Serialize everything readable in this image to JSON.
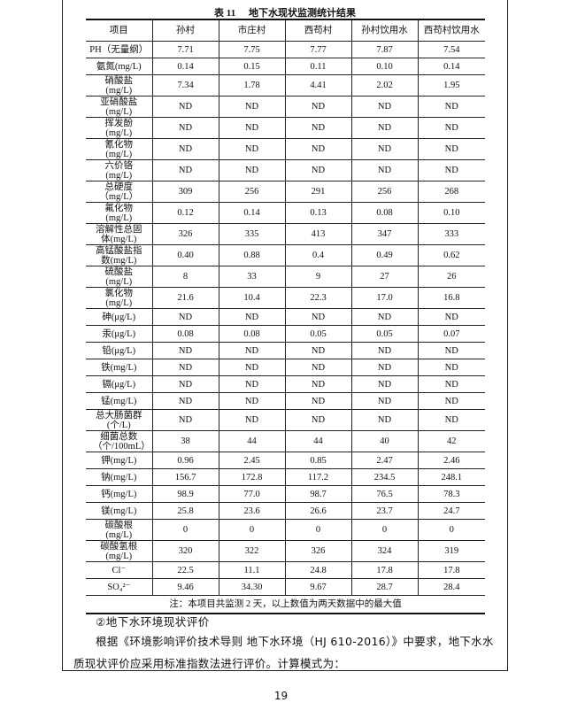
{
  "table": {
    "caption_no": "表 11",
    "caption_title": "地下水现状监测统计结果",
    "headers": [
      "项目",
      "孙村",
      "市庄村",
      "西苟村",
      "孙村饮用水",
      "西苟村饮用水"
    ],
    "rows": [
      {
        "item": "PH（无量纲）",
        "values": [
          "7.71",
          "7.75",
          "7.77",
          "7.87",
          "7.54"
        ],
        "tall": false
      },
      {
        "item": "氨氮(mg/L)",
        "values": [
          "0.14",
          "0.15",
          "0.11",
          "0.10",
          "0.14"
        ],
        "tall": false
      },
      {
        "item": "硝酸盐(mg/L)",
        "values": [
          "7.34",
          "1.78",
          "4.41",
          "2.02",
          "1.95"
        ],
        "tall": true
      },
      {
        "item": "亚硝酸盐(mg/L)",
        "values": [
          "ND",
          "ND",
          "ND",
          "ND",
          "ND"
        ],
        "tall": true
      },
      {
        "item": "挥发酚(mg/L)",
        "values": [
          "ND",
          "ND",
          "ND",
          "ND",
          "ND"
        ],
        "tall": true
      },
      {
        "item": "氰化物(mg/L)",
        "values": [
          "ND",
          "ND",
          "ND",
          "ND",
          "ND"
        ],
        "tall": true
      },
      {
        "item": "六价铬(mg/L)",
        "values": [
          "ND",
          "ND",
          "ND",
          "ND",
          "ND"
        ],
        "tall": true
      },
      {
        "item": "总硬度（mg/L）",
        "values": [
          "309",
          "256",
          "291",
          "256",
          "268"
        ],
        "tall": true
      },
      {
        "item": "氟化物(mg/L)",
        "values": [
          "0.12",
          "0.14",
          "0.13",
          "0.08",
          "0.10"
        ],
        "tall": true
      },
      {
        "item": "溶解性总固体(mg/L)",
        "values": [
          "326",
          "335",
          "413",
          "347",
          "333"
        ],
        "tall": true
      },
      {
        "item": "高锰酸盐指数(mg/L)",
        "values": [
          "0.40",
          "0.88",
          "0.4",
          "0.49",
          "0.62"
        ],
        "tall": true
      },
      {
        "item": "硫酸盐(mg/L)",
        "values": [
          "8",
          "33",
          "9",
          "27",
          "26"
        ],
        "tall": true
      },
      {
        "item": "氯化物(mg/L)",
        "values": [
          "21.6",
          "10.4",
          "22.3",
          "17.0",
          "16.8"
        ],
        "tall": true
      },
      {
        "item": "砷(μg/L)",
        "values": [
          "ND",
          "ND",
          "ND",
          "ND",
          "ND"
        ],
        "tall": false
      },
      {
        "item": "汞(μg/L)",
        "values": [
          "0.08",
          "0.08",
          "0.05",
          "0.05",
          "0.07"
        ],
        "tall": false
      },
      {
        "item": "铅(μg/L)",
        "values": [
          "ND",
          "ND",
          "ND",
          "ND",
          "ND"
        ],
        "tall": false
      },
      {
        "item": "铁(mg/L)",
        "values": [
          "ND",
          "ND",
          "ND",
          "ND",
          "ND"
        ],
        "tall": false
      },
      {
        "item": "镉(μg/L)",
        "values": [
          "ND",
          "ND",
          "ND",
          "ND",
          "ND"
        ],
        "tall": false
      },
      {
        "item": "锰(mg/L)",
        "values": [
          "ND",
          "ND",
          "ND",
          "ND",
          "ND"
        ],
        "tall": false
      },
      {
        "item": "总大肠菌群(个/L)",
        "values": [
          "ND",
          "ND",
          "ND",
          "ND",
          "ND"
        ],
        "tall": true
      },
      {
        "item": "细菌总数（个/100mL）",
        "values": [
          "38",
          "44",
          "44",
          "40",
          "42"
        ],
        "tall": true
      },
      {
        "item": "钾(mg/L)",
        "values": [
          "0.96",
          "2.45",
          "0.85",
          "2.47",
          "2.46"
        ],
        "tall": false
      },
      {
        "item": "钠(mg/L)",
        "values": [
          "156.7",
          "172.8",
          "117.2",
          "234.5",
          "248.1"
        ],
        "tall": false
      },
      {
        "item": "钙(mg/L)",
        "values": [
          "98.9",
          "77.0",
          "98.7",
          "76.5",
          "78.3"
        ],
        "tall": false
      },
      {
        "item": "镁(mg/L)",
        "values": [
          "25.8",
          "23.6",
          "26.6",
          "23.7",
          "24.7"
        ],
        "tall": false
      },
      {
        "item": "碳酸根(mg/L)",
        "values": [
          "0",
          "0",
          "0",
          "0",
          "0"
        ],
        "tall": true
      },
      {
        "item": "碳酸氢根(mg/L)",
        "values": [
          "320",
          "322",
          "326",
          "324",
          "319"
        ],
        "tall": true
      },
      {
        "item": "Cl⁻",
        "values": [
          "22.5",
          "11.1",
          "24.8",
          "17.8",
          "17.8"
        ],
        "tall": false
      },
      {
        "item": "SO₄²⁻",
        "values": [
          "9.46",
          "34.30",
          "9.67",
          "28.7",
          "28.4"
        ],
        "tall": false
      }
    ],
    "note": "注：本项目共监测 2 天，以上数值为两天数据中的最大值"
  },
  "section_heading": "②地下水环境现状评价",
  "paragraph": "根据《环境影响评价技术导则 地下水环境（HJ 610-2016）》中要求，地下水水质现状评价应采用标准指数法进行评价。计算模式为：",
  "page_number": "19"
}
